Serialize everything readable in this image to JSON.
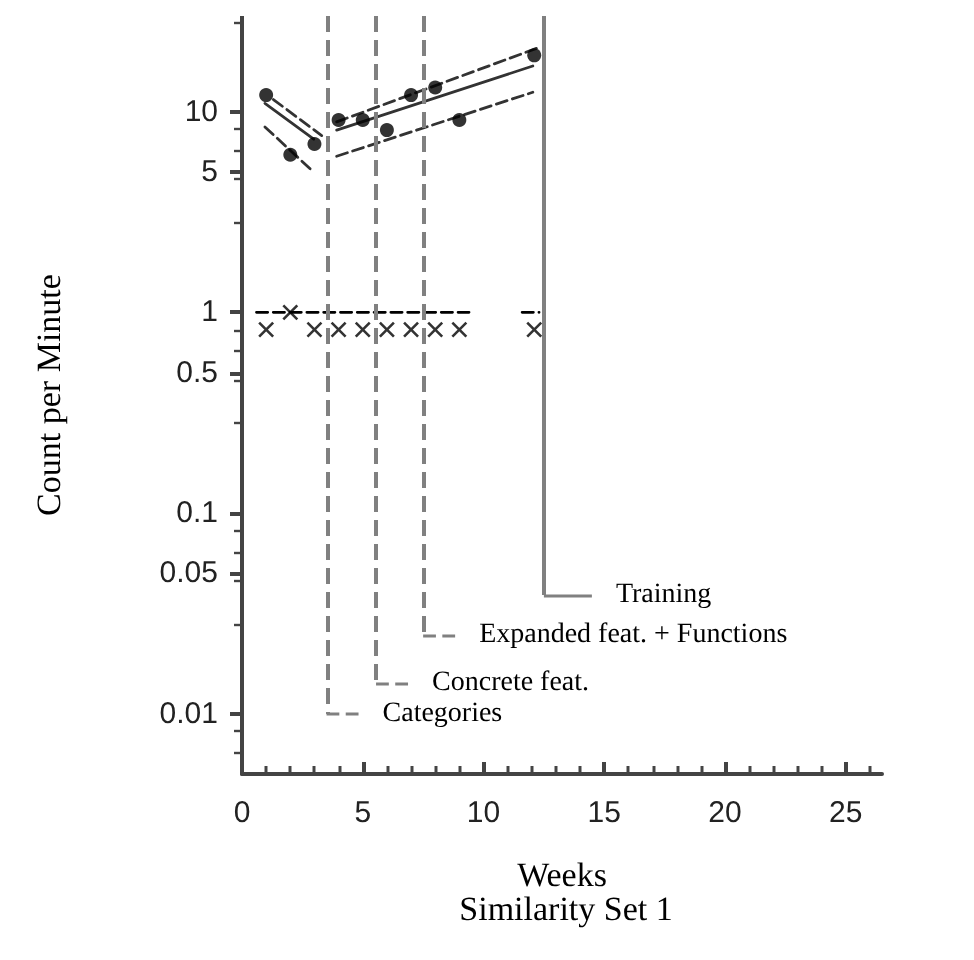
{
  "chart_data": {
    "type": "scatter",
    "title": "Similarity Set 1",
    "xlabel": "Weeks",
    "ylabel": "Count per Minute",
    "log": "y",
    "xlim": [
      0,
      26.5
    ],
    "xticks": [
      0,
      5,
      10,
      15,
      20,
      25
    ],
    "ylim": [
      0.005,
      30
    ],
    "yticks": [
      0.01,
      0.05,
      0.1,
      0.5,
      1,
      5,
      10
    ],
    "grid": false,
    "series": [
      {
        "marker": "circle",
        "color": "#000000",
        "x": [
          1,
          2,
          3,
          4,
          5,
          6,
          7,
          8,
          9,
          12.1
        ],
        "values": [
          12.1,
          6.1,
          6.9,
          9.1,
          9.1,
          8.1,
          12.1,
          13.2,
          9.1,
          19.1
        ]
      },
      {
        "marker": "cross",
        "color": "#000000",
        "x": [
          1,
          2,
          3,
          4,
          5,
          6,
          7,
          8,
          9,
          12.1
        ],
        "values": [
          0.82,
          1,
          0.82,
          0.82,
          0.82,
          0.82,
          0.82,
          0.82,
          0.82,
          0.82
        ]
      },
      {
        "type": "line",
        "line_style": "dashed",
        "color": "#000000",
        "x": [
          0.6,
          9.4,
          10.5,
          11.6,
          12.3
        ],
        "values": [
          1,
          1,
          null,
          1,
          1
        ]
      },
      {
        "type": "line",
        "line_style": "solid",
        "color": "#333333",
        "x": [
          0.95,
          2.97
        ],
        "values": [
          11.0,
          7.3
        ]
      },
      {
        "type": "line",
        "line_style": "dashed",
        "color": "#333333",
        "x": [
          1.3,
          3.3
        ],
        "values": [
          11.5,
          7.6
        ]
      },
      {
        "type": "line",
        "line_style": "dashed",
        "color": "#333333",
        "x": [
          0.95,
          2.97
        ],
        "values": [
          8.4,
          5.0
        ]
      },
      {
        "type": "line",
        "line_style": "solid",
        "color": "#333333",
        "x": [
          3.92,
          12.04
        ],
        "values": [
          8.1,
          16.9
        ]
      },
      {
        "type": "line",
        "line_style": "dashed",
        "color": "#333333",
        "x": [
          3.92,
          12.2
        ],
        "values": [
          8.9,
          20.7
        ]
      },
      {
        "type": "line",
        "line_style": "dashed",
        "color": "#333333",
        "x": [
          3.92,
          12.04
        ],
        "values": [
          6.0,
          12.5
        ]
      }
    ],
    "ref_lines": [
      {
        "axis": "x",
        "value": 3.5,
        "label": "Categories",
        "line_style": "dashed",
        "color": "#808080"
      },
      {
        "axis": "x",
        "value": 5.55,
        "label": "Concrete feat.",
        "line_style": "dashed",
        "color": "#808080"
      },
      {
        "axis": "x",
        "value": 7.5,
        "label": "Expanded feat. + Functions",
        "line_style": "dashed",
        "color": "#808080"
      },
      {
        "axis": "x",
        "value": 12.5,
        "label": "Training",
        "line_style": "solid",
        "color": "#808080"
      }
    ]
  }
}
